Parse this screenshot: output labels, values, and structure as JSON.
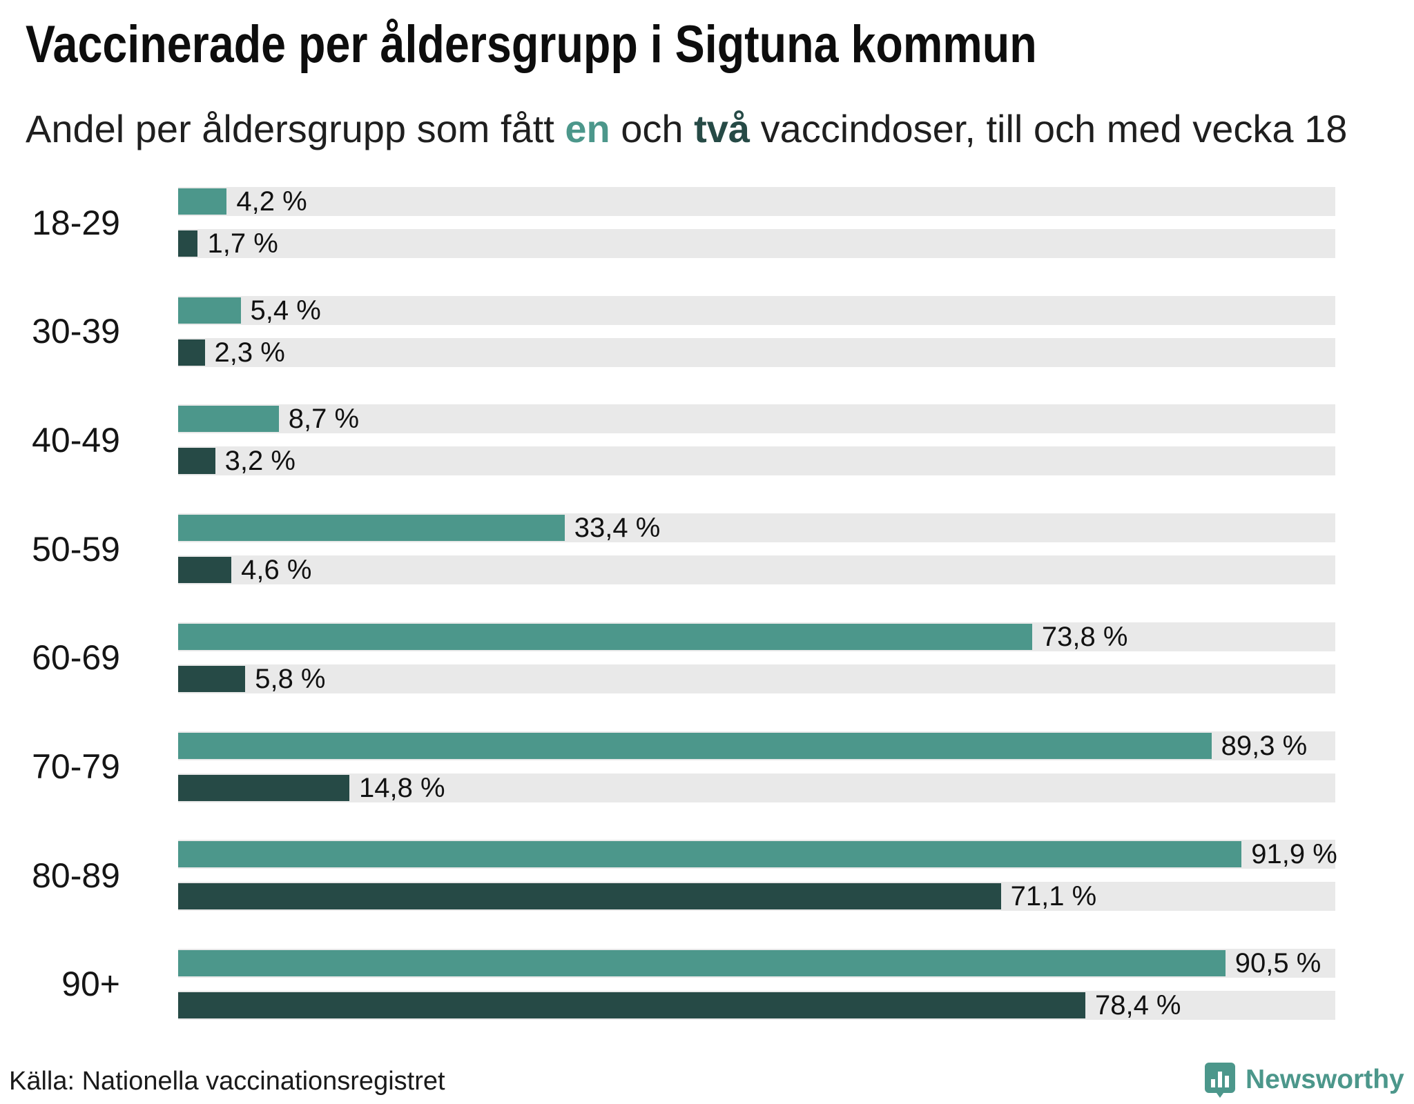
{
  "chart_data": {
    "type": "bar",
    "orientation": "horizontal",
    "title": "Vaccinerade per åldersgrupp i Sigtuna kommun",
    "subtitle": {
      "start": "Andel per åldersgrupp som fått",
      "middle": "och",
      "end": "vaccindoser, till och med vecka 18"
    },
    "categories": [
      "18-29",
      "30-39",
      "40-49",
      "50-59",
      "60-69",
      "70-79",
      "80-89",
      "90+"
    ],
    "series": [
      {
        "name": "en",
        "color": "#4c978b",
        "values": [
          4.2,
          5.4,
          8.7,
          33.4,
          73.8,
          89.3,
          91.9,
          90.5
        ],
        "labels": [
          "4,2 %",
          "5,4 %",
          "8,7 %",
          "33,4 %",
          "73,8 %",
          "89,3 %",
          "91,9 %",
          "90,5 %"
        ]
      },
      {
        "name": "två",
        "color": "#264a46",
        "values": [
          1.7,
          2.3,
          3.2,
          4.6,
          5.8,
          14.8,
          71.1,
          78.4
        ],
        "labels": [
          "1,7 %",
          "2,3 %",
          "3,2 %",
          "4,6 %",
          "5,8 %",
          "14,8 %",
          "71,1 %",
          "78,4 %"
        ]
      }
    ],
    "xlim": [
      0,
      100
    ],
    "track_color": "#e9e9e9",
    "grid": false,
    "legend": "subtitle"
  },
  "source": "Källa: Nationella vaccinationsregistret",
  "brand": {
    "name": "Newsworthy",
    "icon": "newsworthy-bar-chart-bubble-icon",
    "color": "#4c978b"
  }
}
